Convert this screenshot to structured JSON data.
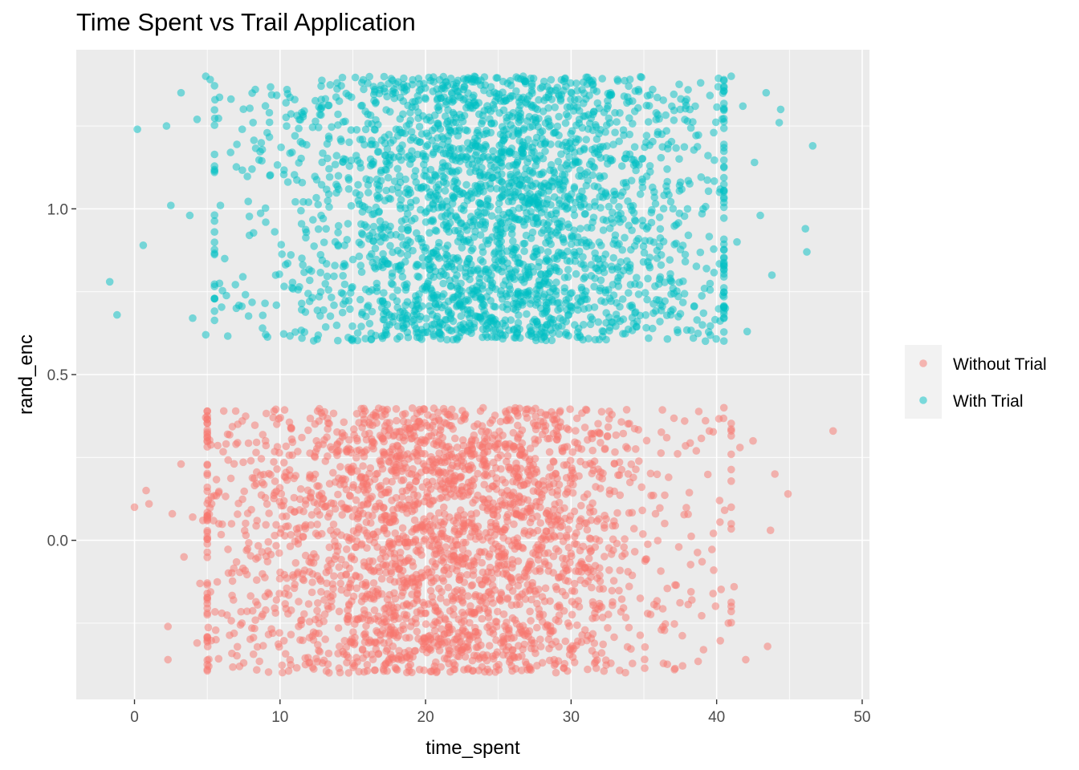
{
  "chart_data": {
    "type": "scatter",
    "title": "Time Spent vs Trail Application",
    "xlabel": "time_spent",
    "ylabel": "rand_enc",
    "xlim": [
      -4,
      50.5
    ],
    "ylim": [
      -0.48,
      1.48
    ],
    "x_ticks": [
      0,
      10,
      20,
      30,
      40,
      50
    ],
    "y_ticks": [
      0.0,
      0.5,
      1.0
    ],
    "x_tick_labels": [
      "0",
      "10",
      "20",
      "30",
      "40",
      "50"
    ],
    "y_tick_labels": [
      "0.0",
      "0.5",
      "1.0"
    ],
    "grid": true,
    "point_opacity": 0.5,
    "legend": {
      "position": "right",
      "items": [
        "Without Trial",
        "With Trial"
      ]
    },
    "series": [
      {
        "name": "Without Trial",
        "color": "#F8766D",
        "group_value": 0,
        "jitter_height": 0.4,
        "points": [
          [
            0.0,
            0.1
          ],
          [
            0.8,
            0.15
          ],
          [
            1.0,
            0.11
          ],
          [
            2.3,
            -0.26
          ],
          [
            2.3,
            -0.36
          ],
          [
            2.6,
            0.08
          ],
          [
            3.2,
            0.23
          ],
          [
            3.4,
            -0.05
          ],
          [
            4.0,
            0.07
          ],
          [
            4.3,
            -0.31
          ],
          [
            4.5,
            -0.13
          ],
          [
            4.7,
            0.06
          ],
          [
            4.9,
            0.37
          ],
          [
            5.1,
            -0.38
          ],
          [
            5.3,
            0.11
          ],
          [
            5.6,
            -0.3
          ],
          [
            5.8,
            0.05
          ],
          [
            6.0,
            -0.22
          ],
          [
            6.4,
            0.32
          ],
          [
            6.8,
            -0.18
          ],
          [
            7.1,
            0.35
          ],
          [
            7.5,
            -0.37
          ],
          [
            8.0,
            0.24
          ],
          [
            8.4,
            -0.12
          ],
          [
            9.0,
            0.3
          ],
          [
            9.5,
            -0.28
          ],
          [
            48.0,
            0.33
          ],
          [
            44.9,
            0.14
          ],
          [
            44.0,
            0.2
          ],
          [
            43.7,
            0.03
          ],
          [
            43.5,
            -0.32
          ],
          [
            42.5,
            0.3
          ],
          [
            42.0,
            -0.36
          ],
          [
            41.6,
            0.28
          ],
          [
            41.2,
            -0.14
          ],
          [
            41.0,
            0.05
          ],
          [
            40.8,
            -0.25
          ],
          [
            40.5,
            0.4
          ],
          [
            40.2,
            0.12
          ],
          [
            39.8,
            -0.09
          ],
          [
            39.5,
            0.33
          ],
          [
            39.1,
            -0.33
          ],
          [
            38.6,
            0.27
          ],
          [
            38.3,
            -0.18
          ],
          [
            37.8,
            0.36
          ],
          [
            37.4,
            -0.02
          ],
          [
            37.1,
            -0.39
          ],
          [
            36.7,
            0.19
          ],
          [
            36.2,
            -0.27
          ],
          [
            35.8,
            0.08
          ]
        ]
      },
      {
        "name": "With Trial",
        "color": "#00BFC4",
        "group_value": 1,
        "jitter_height": 0.4,
        "points": [
          [
            -1.7,
            0.78
          ],
          [
            -1.2,
            0.68
          ],
          [
            0.2,
            1.24
          ],
          [
            0.6,
            0.89
          ],
          [
            2.2,
            1.25
          ],
          [
            2.5,
            1.01
          ],
          [
            3.2,
            1.35
          ],
          [
            3.8,
            0.98
          ],
          [
            4.0,
            0.67
          ],
          [
            4.3,
            1.27
          ],
          [
            4.9,
            1.4
          ],
          [
            5.2,
            1.39
          ],
          [
            4.9,
            0.62
          ],
          [
            5.5,
            0.73
          ],
          [
            5.9,
            1.01
          ],
          [
            6.2,
            0.85
          ],
          [
            6.6,
            1.17
          ],
          [
            7.0,
            0.7
          ],
          [
            7.4,
            1.24
          ],
          [
            7.9,
            0.92
          ],
          [
            8.3,
            1.36
          ],
          [
            8.8,
            0.64
          ],
          [
            9.3,
            1.1
          ],
          [
            9.7,
            0.8
          ],
          [
            46.6,
            1.19
          ],
          [
            46.2,
            0.87
          ],
          [
            46.1,
            0.94
          ],
          [
            44.4,
            1.3
          ],
          [
            44.3,
            1.26
          ],
          [
            43.8,
            0.8
          ],
          [
            43.4,
            1.35
          ],
          [
            43.0,
            0.98
          ],
          [
            42.6,
            1.14
          ],
          [
            42.1,
            0.63
          ],
          [
            41.8,
            1.31
          ],
          [
            41.4,
            0.9
          ],
          [
            41.0,
            1.4
          ],
          [
            40.6,
            0.7
          ],
          [
            40.2,
            1.05
          ],
          [
            39.8,
            1.23
          ],
          [
            39.3,
            0.82
          ],
          [
            38.9,
            1.38
          ],
          [
            38.4,
            0.61
          ],
          [
            38.0,
            1.0
          ],
          [
            37.5,
            1.3
          ],
          [
            37.0,
            0.76
          ],
          [
            36.6,
            1.12
          ],
          [
            36.1,
            0.66
          ],
          [
            35.6,
            1.36
          ],
          [
            35.2,
            0.94
          ]
        ]
      }
    ]
  }
}
